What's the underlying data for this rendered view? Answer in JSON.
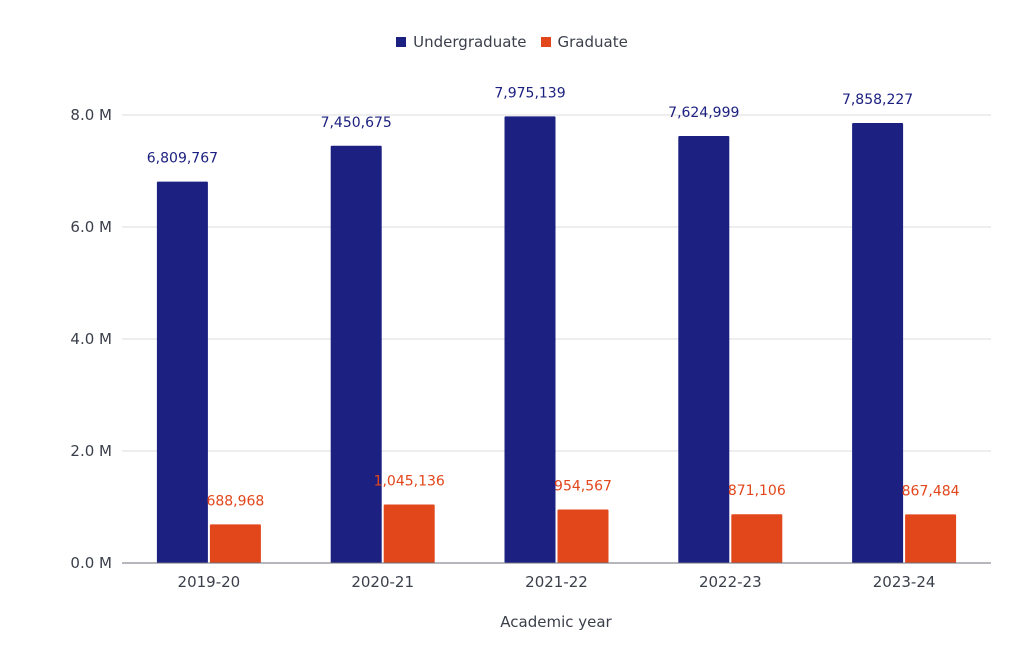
{
  "chart_data": {
    "type": "bar",
    "categories": [
      "2019-20",
      "2020-21",
      "2021-22",
      "2022-23",
      "2023-24"
    ],
    "series": [
      {
        "name": "Undergraduate",
        "color": "#1c2080",
        "values": [
          6809767,
          7450675,
          7975139,
          7624999,
          7858227
        ],
        "labels": [
          "6,809,767",
          "7,450,675",
          "7,975,139",
          "7,624,999",
          "7,858,227"
        ]
      },
      {
        "name": "Graduate",
        "color": "#e2461b",
        "values": [
          688968,
          1045136,
          954567,
          871106,
          867484
        ],
        "labels": [
          "688,968",
          "1,045,136",
          "954,567",
          "871,106",
          "867,484"
        ]
      }
    ],
    "xlabel": "Academic year",
    "ylabel": "",
    "ylim": [
      0,
      8000000
    ],
    "yticks": [
      0,
      2000000,
      4000000,
      6000000,
      8000000
    ],
    "ytick_labels": [
      "0.0 M",
      "2.0 M",
      "4.0 M",
      "6.0 M",
      "8.0 M"
    ],
    "grid": true,
    "legend_position": "top-center"
  }
}
